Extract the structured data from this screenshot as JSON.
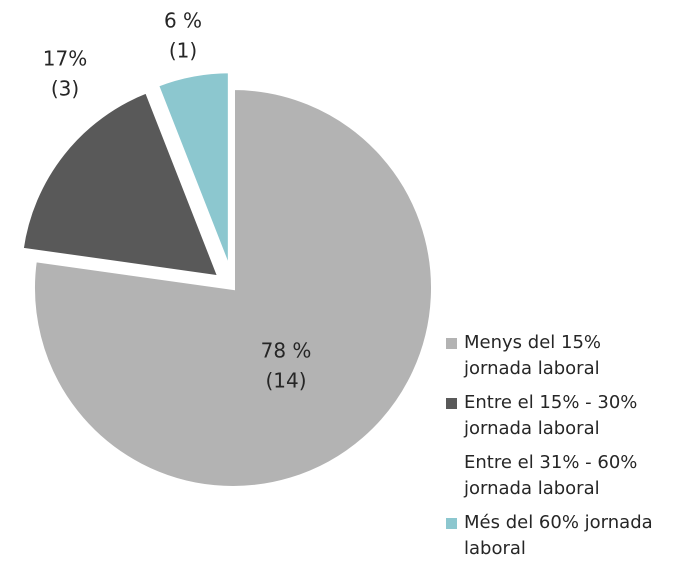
{
  "chart_data": {
    "type": "pie",
    "categories": [
      "Menys del 15% jornada laboral",
      "Entre el 15% - 30% jornada laboral",
      "Entre el 31% - 60% jornada laboral",
      "Més del 60% jornada laboral"
    ],
    "values": [
      78,
      17,
      0,
      6
    ],
    "value_labels": [
      [
        "78 %",
        "(14)"
      ],
      [
        "17%",
        "(3)"
      ],
      null,
      [
        "6 %",
        "(1)"
      ]
    ],
    "colors": [
      "#b3b3b3",
      "#595959",
      "#ffffff",
      "#8cc7cf"
    ],
    "legend": "right"
  }
}
